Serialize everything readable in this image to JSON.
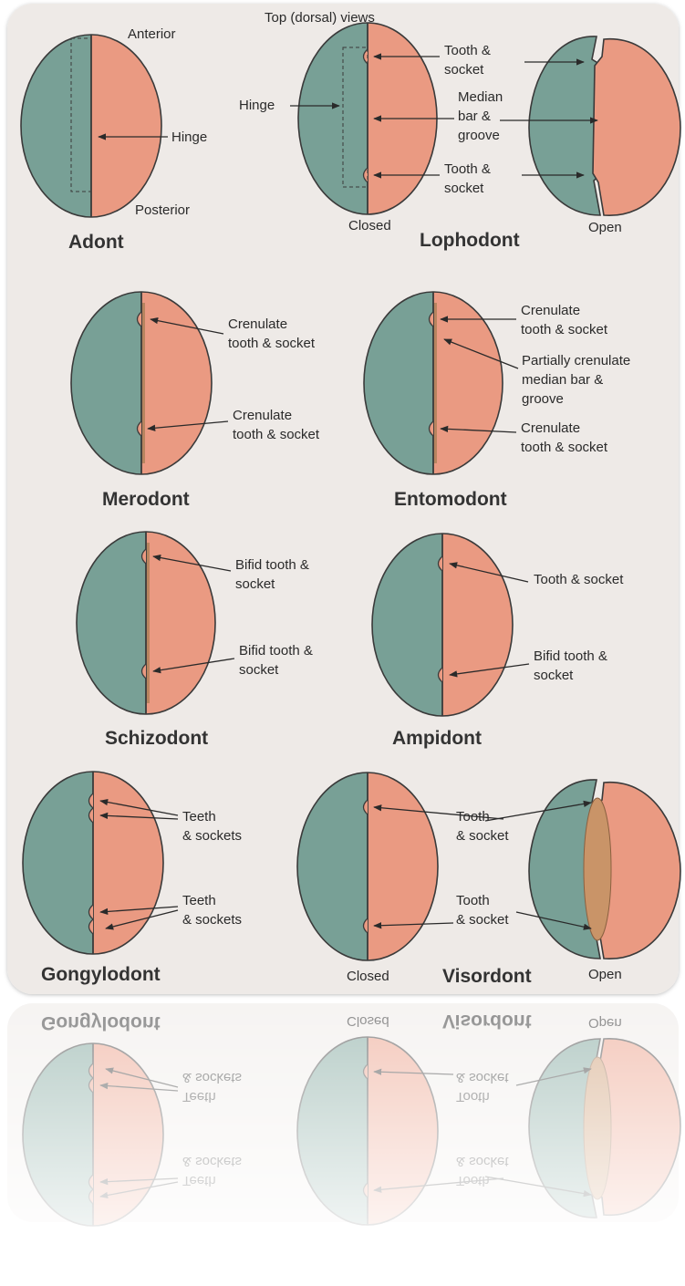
{
  "title": "Top (dorsal) views",
  "diagrams": [
    {
      "name": "Adont",
      "labels": [
        [
          "Anterior"
        ],
        [
          "Hinge"
        ],
        [
          "Posterior"
        ]
      ]
    },
    {
      "name": "Lophodont",
      "views": [
        "Closed",
        "Open"
      ],
      "labels": [
        [
          "Hinge"
        ],
        [
          "Tooth &",
          "socket"
        ],
        [
          "Median",
          "bar &",
          "groove"
        ],
        [
          "Tooth &",
          "socket"
        ]
      ]
    },
    {
      "name": "Merodont",
      "labels": [
        [
          "Crenulate",
          "tooth & socket"
        ],
        [
          "Crenulate",
          "tooth & socket"
        ]
      ]
    },
    {
      "name": "Entomodont",
      "labels": [
        [
          "Crenulate",
          "tooth & socket"
        ],
        [
          "Partially crenulate",
          "median bar &",
          "groove"
        ],
        [
          "Crenulate",
          "tooth & socket"
        ]
      ]
    },
    {
      "name": "Schizodont",
      "labels": [
        [
          "Bifid tooth &",
          "socket"
        ],
        [
          "Bifid tooth &",
          "socket"
        ]
      ]
    },
    {
      "name": "Ampidont",
      "labels": [
        [
          "Tooth & socket"
        ],
        [
          "Bifid tooth &",
          "socket"
        ]
      ]
    },
    {
      "name": "Gongylodont",
      "labels": [
        [
          "Teeth",
          "& sockets"
        ],
        [
          "Teeth",
          "& sockets"
        ]
      ]
    },
    {
      "name": "Visordont",
      "views": [
        "Closed",
        "Open"
      ],
      "labels": [
        [
          "Tooth",
          "& socket"
        ],
        [
          "Tooth",
          "& socket"
        ]
      ]
    }
  ]
}
